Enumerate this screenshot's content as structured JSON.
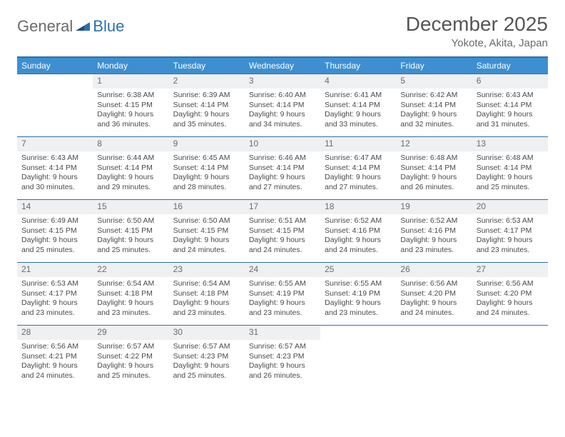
{
  "logo": {
    "part1": "General",
    "part2": "Blue"
  },
  "title": "December 2025",
  "location": "Yokote, Akita, Japan",
  "colors": {
    "header_bg": "#3d8fd1",
    "border": "#2f6fb0",
    "daynum_bg": "#eef0f2",
    "text": "#4a4a4a",
    "logo_gray": "#6b6b6b",
    "logo_blue": "#2f6fb0"
  },
  "weekdays": [
    "Sunday",
    "Monday",
    "Tuesday",
    "Wednesday",
    "Thursday",
    "Friday",
    "Saturday"
  ],
  "weeks": [
    [
      {
        "n": "",
        "l1": "",
        "l2": "",
        "l3": "",
        "l4": ""
      },
      {
        "n": "1",
        "l1": "Sunrise: 6:38 AM",
        "l2": "Sunset: 4:15 PM",
        "l3": "Daylight: 9 hours",
        "l4": "and 36 minutes."
      },
      {
        "n": "2",
        "l1": "Sunrise: 6:39 AM",
        "l2": "Sunset: 4:14 PM",
        "l3": "Daylight: 9 hours",
        "l4": "and 35 minutes."
      },
      {
        "n": "3",
        "l1": "Sunrise: 6:40 AM",
        "l2": "Sunset: 4:14 PM",
        "l3": "Daylight: 9 hours",
        "l4": "and 34 minutes."
      },
      {
        "n": "4",
        "l1": "Sunrise: 6:41 AM",
        "l2": "Sunset: 4:14 PM",
        "l3": "Daylight: 9 hours",
        "l4": "and 33 minutes."
      },
      {
        "n": "5",
        "l1": "Sunrise: 6:42 AM",
        "l2": "Sunset: 4:14 PM",
        "l3": "Daylight: 9 hours",
        "l4": "and 32 minutes."
      },
      {
        "n": "6",
        "l1": "Sunrise: 6:43 AM",
        "l2": "Sunset: 4:14 PM",
        "l3": "Daylight: 9 hours",
        "l4": "and 31 minutes."
      }
    ],
    [
      {
        "n": "7",
        "l1": "Sunrise: 6:43 AM",
        "l2": "Sunset: 4:14 PM",
        "l3": "Daylight: 9 hours",
        "l4": "and 30 minutes."
      },
      {
        "n": "8",
        "l1": "Sunrise: 6:44 AM",
        "l2": "Sunset: 4:14 PM",
        "l3": "Daylight: 9 hours",
        "l4": "and 29 minutes."
      },
      {
        "n": "9",
        "l1": "Sunrise: 6:45 AM",
        "l2": "Sunset: 4:14 PM",
        "l3": "Daylight: 9 hours",
        "l4": "and 28 minutes."
      },
      {
        "n": "10",
        "l1": "Sunrise: 6:46 AM",
        "l2": "Sunset: 4:14 PM",
        "l3": "Daylight: 9 hours",
        "l4": "and 27 minutes."
      },
      {
        "n": "11",
        "l1": "Sunrise: 6:47 AM",
        "l2": "Sunset: 4:14 PM",
        "l3": "Daylight: 9 hours",
        "l4": "and 27 minutes."
      },
      {
        "n": "12",
        "l1": "Sunrise: 6:48 AM",
        "l2": "Sunset: 4:14 PM",
        "l3": "Daylight: 9 hours",
        "l4": "and 26 minutes."
      },
      {
        "n": "13",
        "l1": "Sunrise: 6:48 AM",
        "l2": "Sunset: 4:14 PM",
        "l3": "Daylight: 9 hours",
        "l4": "and 25 minutes."
      }
    ],
    [
      {
        "n": "14",
        "l1": "Sunrise: 6:49 AM",
        "l2": "Sunset: 4:15 PM",
        "l3": "Daylight: 9 hours",
        "l4": "and 25 minutes."
      },
      {
        "n": "15",
        "l1": "Sunrise: 6:50 AM",
        "l2": "Sunset: 4:15 PM",
        "l3": "Daylight: 9 hours",
        "l4": "and 25 minutes."
      },
      {
        "n": "16",
        "l1": "Sunrise: 6:50 AM",
        "l2": "Sunset: 4:15 PM",
        "l3": "Daylight: 9 hours",
        "l4": "and 24 minutes."
      },
      {
        "n": "17",
        "l1": "Sunrise: 6:51 AM",
        "l2": "Sunset: 4:15 PM",
        "l3": "Daylight: 9 hours",
        "l4": "and 24 minutes."
      },
      {
        "n": "18",
        "l1": "Sunrise: 6:52 AM",
        "l2": "Sunset: 4:16 PM",
        "l3": "Daylight: 9 hours",
        "l4": "and 24 minutes."
      },
      {
        "n": "19",
        "l1": "Sunrise: 6:52 AM",
        "l2": "Sunset: 4:16 PM",
        "l3": "Daylight: 9 hours",
        "l4": "and 23 minutes."
      },
      {
        "n": "20",
        "l1": "Sunrise: 6:53 AM",
        "l2": "Sunset: 4:17 PM",
        "l3": "Daylight: 9 hours",
        "l4": "and 23 minutes."
      }
    ],
    [
      {
        "n": "21",
        "l1": "Sunrise: 6:53 AM",
        "l2": "Sunset: 4:17 PM",
        "l3": "Daylight: 9 hours",
        "l4": "and 23 minutes."
      },
      {
        "n": "22",
        "l1": "Sunrise: 6:54 AM",
        "l2": "Sunset: 4:18 PM",
        "l3": "Daylight: 9 hours",
        "l4": "and 23 minutes."
      },
      {
        "n": "23",
        "l1": "Sunrise: 6:54 AM",
        "l2": "Sunset: 4:18 PM",
        "l3": "Daylight: 9 hours",
        "l4": "and 23 minutes."
      },
      {
        "n": "24",
        "l1": "Sunrise: 6:55 AM",
        "l2": "Sunset: 4:19 PM",
        "l3": "Daylight: 9 hours",
        "l4": "and 23 minutes."
      },
      {
        "n": "25",
        "l1": "Sunrise: 6:55 AM",
        "l2": "Sunset: 4:19 PM",
        "l3": "Daylight: 9 hours",
        "l4": "and 23 minutes."
      },
      {
        "n": "26",
        "l1": "Sunrise: 6:56 AM",
        "l2": "Sunset: 4:20 PM",
        "l3": "Daylight: 9 hours",
        "l4": "and 24 minutes."
      },
      {
        "n": "27",
        "l1": "Sunrise: 6:56 AM",
        "l2": "Sunset: 4:20 PM",
        "l3": "Daylight: 9 hours",
        "l4": "and 24 minutes."
      }
    ],
    [
      {
        "n": "28",
        "l1": "Sunrise: 6:56 AM",
        "l2": "Sunset: 4:21 PM",
        "l3": "Daylight: 9 hours",
        "l4": "and 24 minutes."
      },
      {
        "n": "29",
        "l1": "Sunrise: 6:57 AM",
        "l2": "Sunset: 4:22 PM",
        "l3": "Daylight: 9 hours",
        "l4": "and 25 minutes."
      },
      {
        "n": "30",
        "l1": "Sunrise: 6:57 AM",
        "l2": "Sunset: 4:23 PM",
        "l3": "Daylight: 9 hours",
        "l4": "and 25 minutes."
      },
      {
        "n": "31",
        "l1": "Sunrise: 6:57 AM",
        "l2": "Sunset: 4:23 PM",
        "l3": "Daylight: 9 hours",
        "l4": "and 26 minutes."
      },
      {
        "n": "",
        "l1": "",
        "l2": "",
        "l3": "",
        "l4": ""
      },
      {
        "n": "",
        "l1": "",
        "l2": "",
        "l3": "",
        "l4": ""
      },
      {
        "n": "",
        "l1": "",
        "l2": "",
        "l3": "",
        "l4": ""
      }
    ]
  ]
}
